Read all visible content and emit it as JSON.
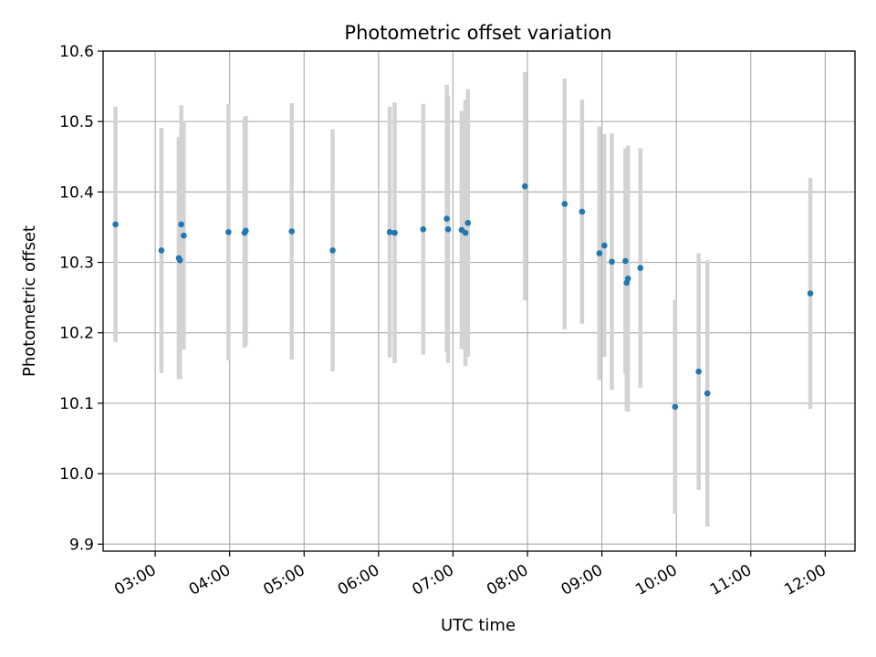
{
  "chart_data": {
    "type": "scatter",
    "title": "Photometric offset variation",
    "xlabel": "UTC time",
    "ylabel": "Photometric offset",
    "x_unit": "UTC time (HH:MM)",
    "xlim": [
      "02:18",
      "12:24"
    ],
    "ylim": [
      9.89,
      10.6
    ],
    "x_ticks": [
      "03:00",
      "04:00",
      "05:00",
      "06:00",
      "07:00",
      "08:00",
      "09:00",
      "10:00",
      "11:00",
      "12:00"
    ],
    "y_ticks": [
      "9.9",
      "10.0",
      "10.1",
      "10.2",
      "10.3",
      "10.4",
      "10.5",
      "10.6"
    ],
    "grid": true,
    "marker_color": "#1f77b4",
    "errorbar_color": "#d3d3d3",
    "points": [
      {
        "x": "02:28",
        "y": 10.354,
        "err": 0.167
      },
      {
        "x": "03:05",
        "y": 10.317,
        "err": 0.174
      },
      {
        "x": "03:19",
        "y": 10.306,
        "err": 0.172
      },
      {
        "x": "03:20",
        "y": 10.303,
        "err": 0.169
      },
      {
        "x": "03:21",
        "y": 10.354,
        "err": 0.169
      },
      {
        "x": "03:23",
        "y": 10.338,
        "err": 0.162
      },
      {
        "x": "03:59",
        "y": 10.343,
        "err": 0.182
      },
      {
        "x": "04:12",
        "y": 10.342,
        "err": 0.163
      },
      {
        "x": "04:13",
        "y": 10.345,
        "err": 0.163
      },
      {
        "x": "04:50",
        "y": 10.344,
        "err": 0.182
      },
      {
        "x": "05:23",
        "y": 10.317,
        "err": 0.172
      },
      {
        "x": "06:09",
        "y": 10.343,
        "err": 0.178
      },
      {
        "x": "06:13",
        "y": 10.342,
        "err": 0.185
      },
      {
        "x": "06:36",
        "y": 10.347,
        "err": 0.178
      },
      {
        "x": "06:55",
        "y": 10.362,
        "err": 0.19
      },
      {
        "x": "06:56",
        "y": 10.347,
        "err": 0.19
      },
      {
        "x": "07:07",
        "y": 10.346,
        "err": 0.169
      },
      {
        "x": "07:10",
        "y": 10.342,
        "err": 0.189
      },
      {
        "x": "07:12",
        "y": 10.356,
        "err": 0.19
      },
      {
        "x": "07:58",
        "y": 10.408,
        "err": 0.162
      },
      {
        "x": "08:30",
        "y": 10.383,
        "err": 0.178
      },
      {
        "x": "08:44",
        "y": 10.372,
        "err": 0.159
      },
      {
        "x": "08:58",
        "y": 10.313,
        "err": 0.18
      },
      {
        "x": "09:02",
        "y": 10.324,
        "err": 0.158
      },
      {
        "x": "09:08",
        "y": 10.301,
        "err": 0.182
      },
      {
        "x": "09:19",
        "y": 10.302,
        "err": 0.16
      },
      {
        "x": "09:20",
        "y": 10.271,
        "err": 0.182
      },
      {
        "x": "09:21",
        "y": 10.277,
        "err": 0.189
      },
      {
        "x": "09:31",
        "y": 10.292,
        "err": 0.17
      },
      {
        "x": "09:59",
        "y": 10.095,
        "err": 0.152
      },
      {
        "x": "10:18",
        "y": 10.145,
        "err": 0.168
      },
      {
        "x": "10:25",
        "y": 10.114,
        "err": 0.189
      },
      {
        "x": "11:48",
        "y": 10.256,
        "err": 0.164
      }
    ]
  }
}
